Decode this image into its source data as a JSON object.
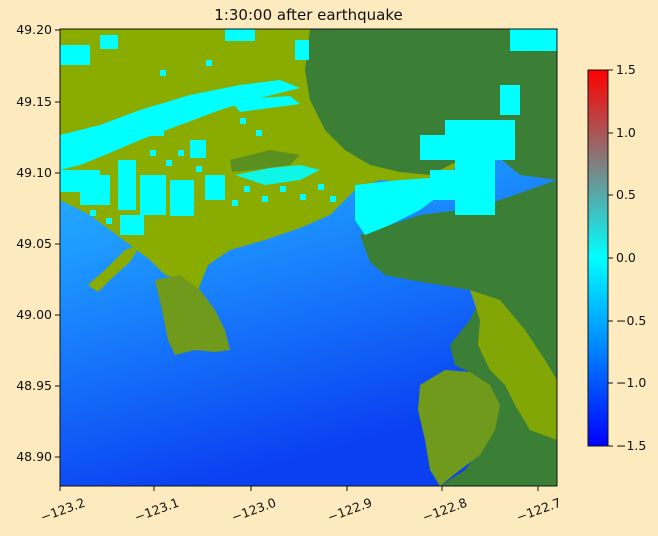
{
  "title": "1:30:00 after earthquake",
  "map": {
    "x_ticks": [
      "−123.2",
      "−123.1",
      "−123.0",
      "−122.9",
      "−122.8",
      "−122.7"
    ],
    "y_ticks": [
      "49.20",
      "49.15",
      "49.10",
      "49.05",
      "49.00",
      "48.95",
      "48.90"
    ],
    "x_range": [
      -123.2,
      -122.69
    ],
    "y_range": [
      48.88,
      49.2
    ]
  },
  "colorbar": {
    "ticks": [
      "1.5",
      "1.0",
      "0.5",
      "0.0",
      "−0.5",
      "−1.0",
      "−1.5"
    ],
    "range": [
      -1.5,
      1.5
    ],
    "colors": {
      "low": "#0000ff",
      "mid_low": "#00aaff",
      "zero": "#00ffff",
      "mid_high": "#7f7f7f",
      "high": "#ff0000"
    }
  },
  "colors": {
    "land_dark": "#3a7f35",
    "land_light": "#8aab00",
    "flooded": "#00ffff",
    "water_shallow": "#1fb4ff",
    "water_deep": "#0a46f5",
    "background": "#fdebbf"
  }
}
